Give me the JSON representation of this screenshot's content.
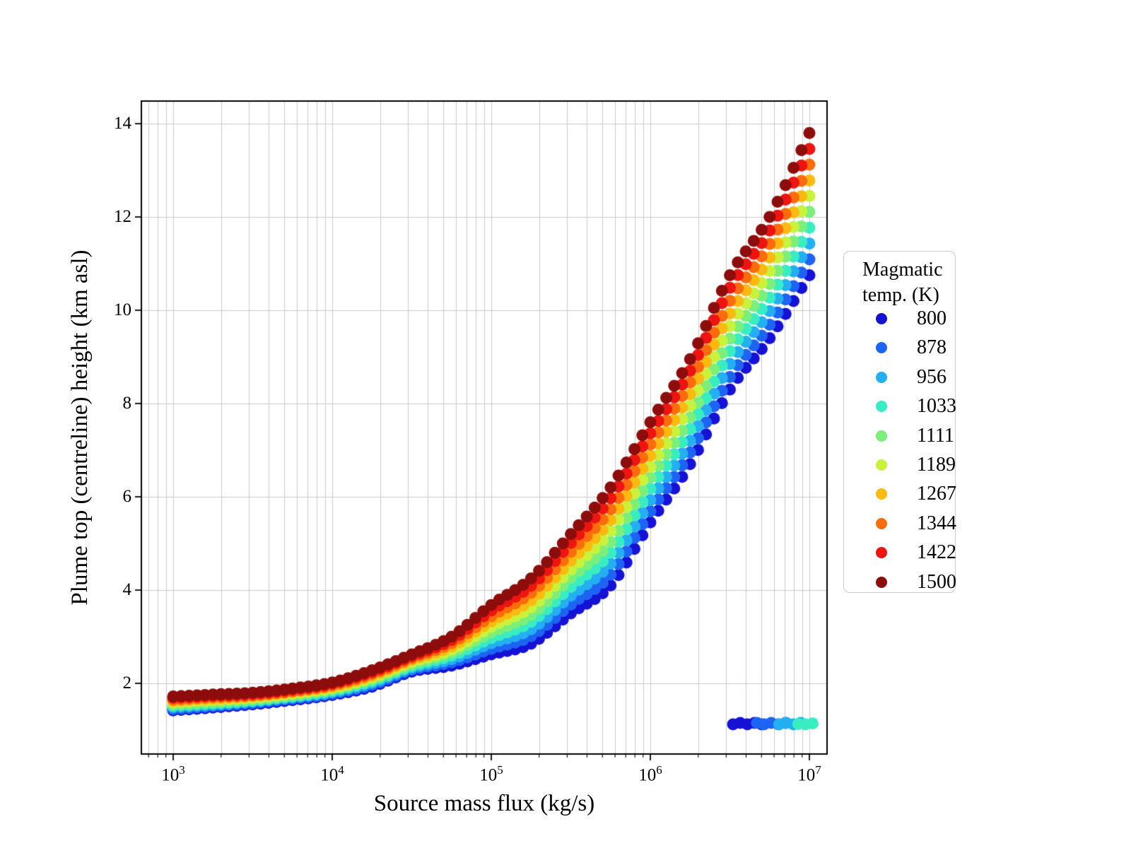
{
  "axes": {
    "xlabel": "Source mass flux (kg/s)",
    "ylabel": "Plume top (centreline) height (km asl)",
    "x_tick_base": "10",
    "x_tick_exponents": [
      3,
      4,
      5,
      6,
      7
    ],
    "y_tick_labels": [
      "2",
      "4",
      "6",
      "8",
      "10",
      "12",
      "14"
    ],
    "y_tick_values": [
      2,
      4,
      6,
      8,
      10,
      12,
      14
    ]
  },
  "legend": {
    "title_line1": "Magmatic",
    "title_line2": "temp. (K)",
    "entries": [
      {
        "label": "800",
        "color": "#1512d6"
      },
      {
        "label": "878",
        "color": "#1e64f2"
      },
      {
        "label": "956",
        "color": "#23aff1"
      },
      {
        "label": "1033",
        "color": "#39edc2"
      },
      {
        "label": "1111",
        "color": "#7bef7b"
      },
      {
        "label": "1189",
        "color": "#c9f23d"
      },
      {
        "label": "1267",
        "color": "#fcba10"
      },
      {
        "label": "1344",
        "color": "#fb6d0c"
      },
      {
        "label": "1422",
        "color": "#ee1511"
      },
      {
        "label": "1500",
        "color": "#8c0d0b"
      }
    ]
  },
  "chart_data": {
    "type": "scatter",
    "x_axis": "log10 of source mass flux (kg/s)",
    "y_axis": "plume top height (km asl)",
    "xlim_log10": [
      2.8,
      7.111
    ],
    "ylim": [
      0.485,
      14.485
    ],
    "grid_color": "#c9c9c9",
    "x_log10": [
      3.0,
      3.25,
      3.5,
      3.75,
      4.0,
      4.25,
      4.5,
      4.75,
      5.0,
      5.25,
      5.5,
      5.75,
      6.0,
      6.25,
      6.5,
      6.75,
      7.0
    ],
    "series": [
      {
        "temp_K": 800,
        "color": "#1512d6",
        "heights": [
          1.42,
          1.48,
          1.55,
          1.64,
          1.75,
          1.93,
          2.25,
          2.38,
          2.62,
          2.85,
          3.5,
          4.1,
          5.45,
          6.7,
          8.3,
          9.4,
          10.75
        ]
      },
      {
        "temp_K": 878,
        "color": "#1e64f2",
        "heights": [
          1.45,
          1.51,
          1.58,
          1.67,
          1.78,
          1.97,
          2.29,
          2.45,
          2.74,
          3.01,
          3.69,
          4.33,
          5.69,
          6.95,
          8.57,
          9.69,
          11.09
        ]
      },
      {
        "temp_K": 956,
        "color": "#23aff1",
        "heights": [
          1.49,
          1.54,
          1.61,
          1.7,
          1.81,
          2.01,
          2.33,
          2.52,
          2.86,
          3.16,
          3.88,
          4.57,
          5.93,
          7.2,
          8.85,
          9.98,
          11.43
        ]
      },
      {
        "temp_K": 1033,
        "color": "#39edc2",
        "heights": [
          1.52,
          1.57,
          1.63,
          1.72,
          1.84,
          2.05,
          2.37,
          2.59,
          2.97,
          3.32,
          4.07,
          4.8,
          6.17,
          7.45,
          9.12,
          10.27,
          11.77
        ]
      },
      {
        "temp_K": 1111,
        "color": "#7bef7b",
        "heights": [
          1.55,
          1.6,
          1.66,
          1.75,
          1.87,
          2.09,
          2.41,
          2.66,
          3.09,
          3.47,
          4.26,
          5.03,
          6.41,
          7.7,
          9.39,
          10.56,
          12.11
        ]
      },
      {
        "temp_K": 1189,
        "color": "#c9f23d",
        "heights": [
          1.59,
          1.64,
          1.69,
          1.78,
          1.9,
          2.12,
          2.46,
          2.72,
          3.21,
          3.63,
          4.44,
          5.27,
          6.64,
          7.95,
          9.66,
          10.84,
          12.45
        ]
      },
      {
        "temp_K": 1267,
        "color": "#fcba10",
        "heights": [
          1.62,
          1.67,
          1.72,
          1.81,
          1.93,
          2.16,
          2.5,
          2.79,
          3.33,
          3.78,
          4.63,
          5.5,
          6.88,
          8.2,
          9.93,
          11.13,
          12.78
        ]
      },
      {
        "temp_K": 1344,
        "color": "#fb6d0c",
        "heights": [
          1.65,
          1.7,
          1.74,
          1.83,
          1.96,
          2.2,
          2.54,
          2.86,
          3.44,
          3.94,
          4.82,
          5.73,
          7.12,
          8.45,
          10.2,
          11.42,
          13.12
        ]
      },
      {
        "temp_K": 1422,
        "color": "#ee1511",
        "heights": [
          1.69,
          1.73,
          1.77,
          1.86,
          1.99,
          2.24,
          2.58,
          2.93,
          3.56,
          4.09,
          5.01,
          5.97,
          7.36,
          8.7,
          10.48,
          11.71,
          13.46
        ]
      },
      {
        "temp_K": 1500,
        "color": "#8c0d0b",
        "heights": [
          1.72,
          1.76,
          1.8,
          1.89,
          2.02,
          2.28,
          2.62,
          3.0,
          3.68,
          4.25,
          5.2,
          6.2,
          7.6,
          8.95,
          10.75,
          12.0,
          13.8
        ]
      }
    ],
    "collapse_branch": [
      {
        "temp_K": 800,
        "color": "#1512d6",
        "points": [
          [
            6.52,
            1.12
          ],
          [
            6.565,
            1.15
          ],
          [
            6.61,
            1.12
          ],
          [
            6.655,
            1.15
          ],
          [
            6.7,
            1.12
          ]
        ]
      },
      {
        "temp_K": 878,
        "color": "#1e64f2",
        "points": [
          [
            6.67,
            1.15
          ],
          [
            6.715,
            1.12
          ],
          [
            6.76,
            1.15
          ],
          [
            6.805,
            1.12
          ],
          [
            6.85,
            1.15
          ]
        ]
      },
      {
        "temp_K": 956,
        "color": "#23aff1",
        "points": [
          [
            6.81,
            1.12
          ],
          [
            6.855,
            1.15
          ],
          [
            6.9,
            1.12
          ],
          [
            6.945,
            1.15
          ]
        ]
      },
      {
        "temp_K": 1033,
        "color": "#39edc2",
        "points": [
          [
            6.93,
            1.13
          ],
          [
            6.975,
            1.12
          ],
          [
            7.02,
            1.14
          ]
        ]
      }
    ],
    "sample_step_log10": 0.05,
    "marker_radius_px": 8.5
  }
}
